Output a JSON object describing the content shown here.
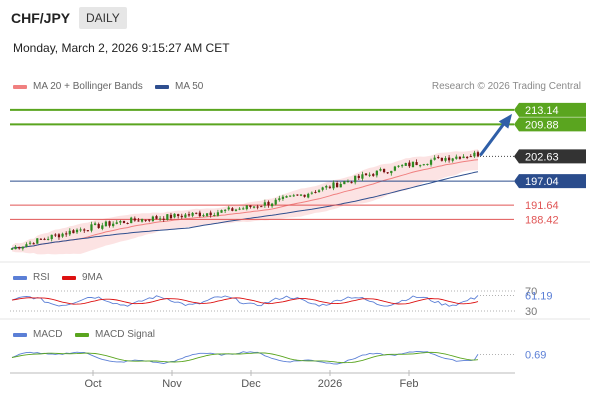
{
  "header": {
    "pair": "CHF/JPY",
    "timeframe": "DAILY",
    "datetime": "Monday, March 2, 2026 9:15:27 AM CET",
    "credit": "Research © 2026 Trading Central"
  },
  "colors": {
    "bollinger": "#f08080",
    "ma50": "#2f4f8f",
    "resistance": "#5aa51f",
    "pivot": "#2a4c8c",
    "support": "#e05555",
    "last_price": "#333333",
    "rsi": "#5b7fd6",
    "rsi_ma": "#dd1111",
    "macd": "#5b7fd6",
    "macd_signal": "#5aa51f",
    "candle_up": "#2e8b22",
    "candle_down": "#7a1010"
  },
  "chart_data": [
    {
      "type": "candlestick",
      "panel": "price",
      "legend": [
        {
          "label": "MA 20 + Bollinger Bands",
          "color": "#f08080"
        },
        {
          "label": "MA 50",
          "color": "#2f4f8f"
        }
      ],
      "x_ticks": [
        "Oct",
        "Nov",
        "Dec",
        "2026",
        "Feb"
      ],
      "ylim": [
        181.5,
        216.5
      ],
      "start": 181.9,
      "end": 202.63,
      "levels": [
        {
          "value": 213.14,
          "label": "213.14",
          "kind": "resistance"
        },
        {
          "value": 209.88,
          "label": "209.88",
          "kind": "resistance"
        },
        {
          "value": 202.63,
          "label": "202.63",
          "kind": "last"
        },
        {
          "value": 197.04,
          "label": "197.04",
          "kind": "pivot"
        },
        {
          "value": 191.64,
          "label": "191.64",
          "kind": "support"
        },
        {
          "value": 188.42,
          "label": "188.42",
          "kind": "support"
        }
      ],
      "forecast_target": 213.14
    },
    {
      "type": "line",
      "panel": "rsi",
      "legend": [
        {
          "label": "RSI",
          "color": "#5b7fd6"
        },
        {
          "label": "9MA",
          "color": "#dd1111"
        }
      ],
      "levels": [
        "70",
        "30"
      ],
      "last_value": "61.19"
    },
    {
      "type": "line",
      "panel": "macd",
      "legend": [
        {
          "label": "MACD",
          "color": "#5b7fd6"
        },
        {
          "label": "MACD Signal",
          "color": "#5aa51f"
        }
      ],
      "last_value": "0.69"
    }
  ]
}
